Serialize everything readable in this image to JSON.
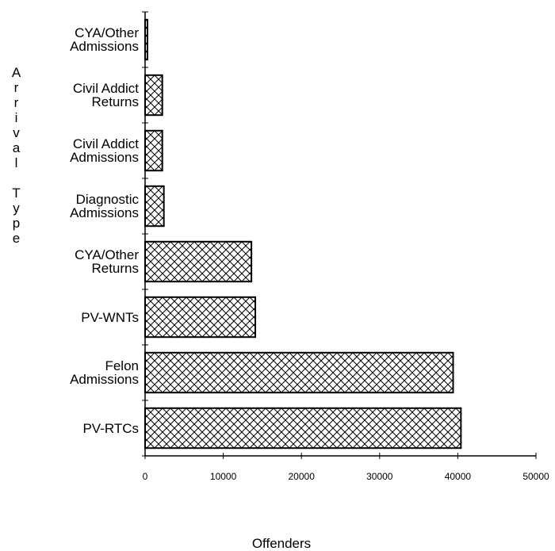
{
  "chart_data": {
    "type": "barh",
    "categories": [
      "CYA/Other\nAdmissions",
      "Civil Addict\nReturns",
      "Civil Addict\nAdmissions",
      "Diagnostic\nAdmissions",
      "CYA/Other\nReturns",
      "PV-WNTs",
      "Felon\nAdmissions",
      "PV-RTCs"
    ],
    "values": [
      300,
      2200,
      2200,
      2400,
      13600,
      14100,
      39400,
      40400
    ],
    "color": "#000000",
    "xlim": [
      0,
      50000
    ],
    "xticks": [
      0,
      10000,
      20000,
      30000,
      40000,
      50000
    ],
    "xlabel": "Offenders",
    "ylabel": "Arrival Type"
  }
}
